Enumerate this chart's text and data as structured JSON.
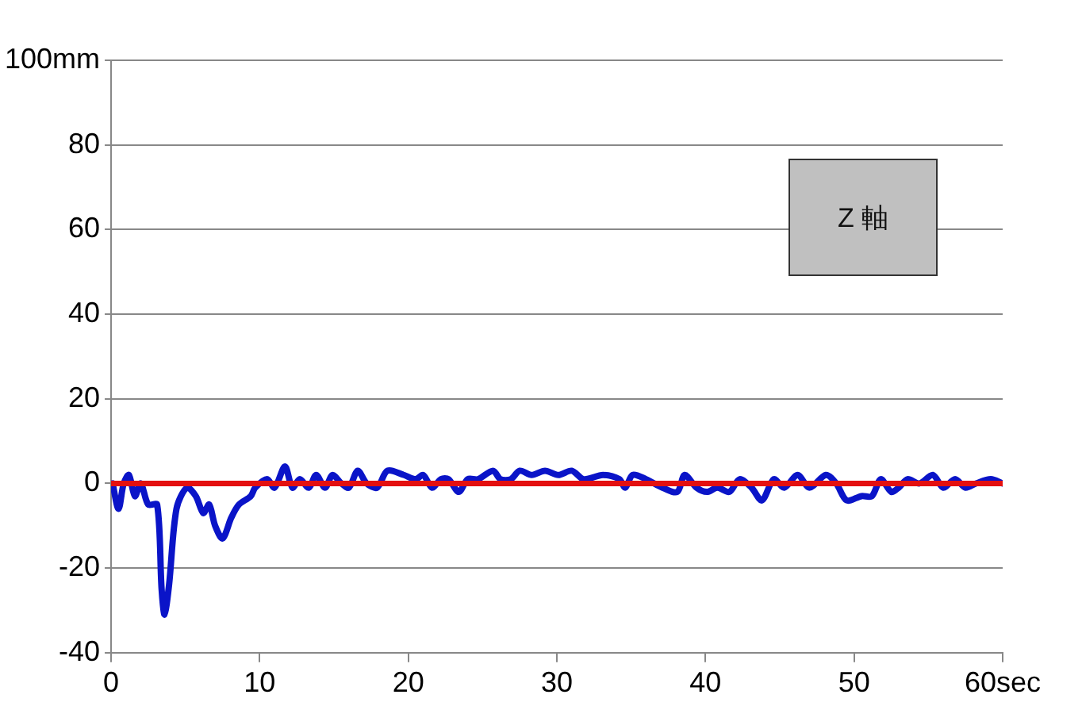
{
  "chart_data": {
    "type": "line",
    "annotations": [
      "Z 軸"
    ],
    "xlim": [
      0,
      60
    ],
    "xticks": [
      0,
      10,
      20,
      30,
      40,
      50,
      {
        "value": 60,
        "label": "60sec"
      }
    ],
    "ylim": [
      -40,
      100
    ],
    "yticks": [
      -40,
      -20,
      0,
      20,
      40,
      60,
      80,
      {
        "value": 100,
        "label": "100mm"
      }
    ],
    "grid": "y",
    "legend": false,
    "marker": "none",
    "line_style": "solid",
    "series": [
      {
        "color": "#0a14c8",
        "x": [
          0.1,
          0.5,
          0.85,
          1.2,
          1.6,
          2.0,
          2.5,
          3.1,
          3.4,
          3.6,
          3.9,
          4.4,
          5.1,
          5.7,
          6.2,
          6.6,
          7.0,
          7.5,
          8.1,
          8.6,
          9.4,
          9.7,
          10.5,
          11.0,
          11.7,
          12.2,
          12.7,
          13.3,
          13.8,
          14.4,
          14.9,
          15.5,
          16.0,
          16.6,
          17.2,
          17.9,
          18.6,
          19.7,
          20.5,
          21.0,
          21.6,
          22.2,
          22.7,
          23.4,
          24.0,
          24.7,
          25.7,
          26.2,
          26.9,
          27.5,
          28.3,
          29.2,
          30.1,
          31.0,
          31.8,
          33.1,
          34.2,
          34.6,
          35.1,
          36.0,
          37.1,
          38.1,
          38.6,
          39.4,
          40.1,
          40.8,
          41.6,
          42.3,
          43.1,
          43.8,
          44.6,
          45.3,
          46.2,
          47.0,
          48.1,
          48.8,
          49.5,
          50.5,
          51.2,
          51.8,
          52.5,
          53.0,
          53.6,
          54.4,
          55.3,
          56.0,
          56.8,
          57.5,
          58.2,
          59.2,
          60
        ],
        "values": [
          0,
          -6,
          0,
          2,
          -3,
          0,
          -5,
          -5,
          -25,
          -31,
          -24,
          -6,
          -1,
          -3,
          -7,
          -5,
          -10,
          -13,
          -8,
          -5,
          -3,
          -1,
          1,
          -1,
          4,
          -1,
          1,
          -1,
          2,
          -1,
          2,
          0,
          -1,
          3,
          0,
          -1,
          3,
          2,
          1,
          2,
          -1,
          1,
          1,
          -2,
          1,
          1,
          3,
          1,
          1,
          3,
          2,
          3,
          2,
          3,
          1,
          2,
          1,
          -1,
          2,
          1,
          -1,
          -2,
          2,
          -1,
          -2,
          -1,
          -2,
          1,
          -1,
          -4,
          1,
          -1,
          2,
          -1,
          2,
          0,
          -4,
          -3,
          -3,
          1,
          -2,
          -1,
          1,
          0,
          2,
          -1,
          1,
          -1,
          0,
          1,
          0
        ]
      },
      {
        "color": "#e41010",
        "x": [
          0,
          60
        ],
        "values": [
          0,
          0
        ]
      }
    ]
  }
}
